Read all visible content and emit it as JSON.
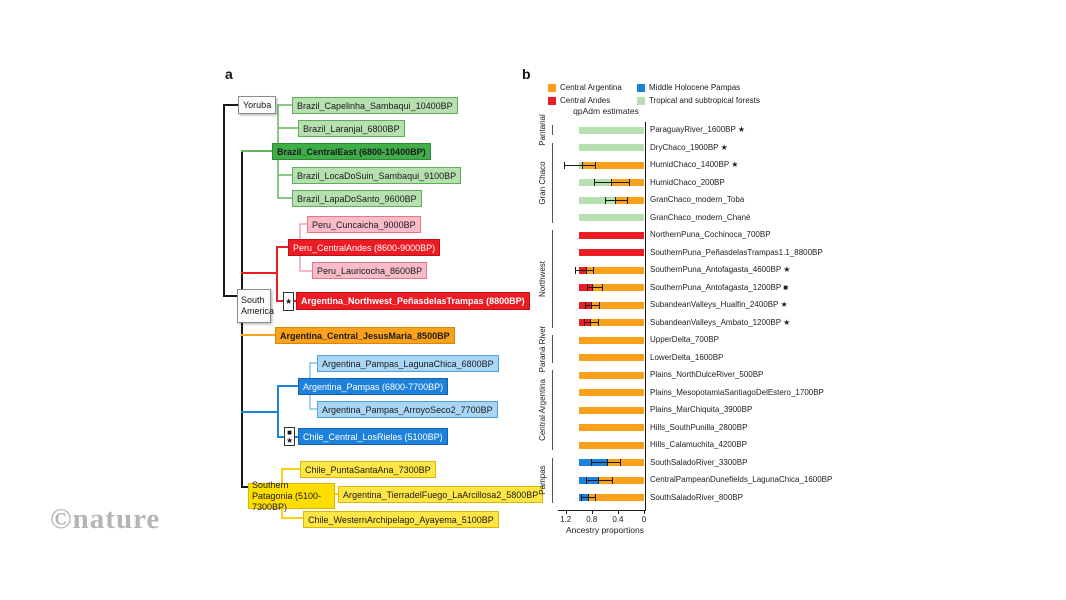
{
  "tree": {
    "panel_label": "a",
    "yoruba": "Yoruba",
    "south_america": "South America",
    "capelinha": "Brazil_Capelinha_Sambaqui_10400BP",
    "laranjal": "Brazil_Laranjal_6800BP",
    "central_east": "Brazil_CentralEast (6800-10400BP)",
    "loca_do_suin": "Brazil_LocaDoSuin_Sambaqui_9100BP",
    "lapa_do_santo": "Brazil_LapaDoSanto_9600BP",
    "cuncaicha": "Peru_Cuncaicha_9000BP",
    "central_andes": "Peru_CentralAndes (8600-9000BP)",
    "lauricocha": "Peru_Lauricocha_8600BP",
    "penas_marker": "★",
    "penas": "Argentina_Northwest_PeñasdelasTrampas (8800BP)",
    "jesus_maria": "Argentina_Central_JesusMaria_8500BP",
    "laguna_chica": "Argentina_Pampas_LagunaChica_6800BP",
    "pampas": "Argentina_Pampas (6800-7700BP)",
    "arroyo_seco": "Argentina_Pampas_ArroyoSeco2_7700BP",
    "los_rieles_marker_square": "■",
    "los_rieles_marker_star": "★",
    "los_rieles": "Chile_Central_LosRieles (5100BP)",
    "punta_santa_ana": "Chile_PuntaSantaAna_7300BP",
    "southern_patagonia": "Southern Patagonia (5100-7300BP)",
    "tierra_del_fuego": "Argentina_TierradelFuego_LaArcillosa2_5800BP",
    "ayayema": "Chile_WesternArchipelago_Ayayema_5100BP"
  },
  "watermark": "©nature",
  "chart_data": {
    "type": "bar",
    "orientation": "horizontal-stacked",
    "panel_label": "b",
    "title": "qpAdm estimates",
    "xlabel": "Ancestry proportions",
    "x_ticks": [
      1.2,
      0.8,
      0.4,
      0
    ],
    "x_axis_reversed": true,
    "legend": [
      {
        "name": "Central Argentina",
        "color": "#f9a11b"
      },
      {
        "name": "Central Andes",
        "color": "#ec1c24"
      },
      {
        "name": "Middle Holocene Pampas",
        "color": "#1e82dc"
      },
      {
        "name": "Tropical and subtropical forests",
        "color": "#b7e0b0"
      }
    ],
    "groups": [
      {
        "label": "Pantanal",
        "rows": [
          {
            "label": "ParaguayRiver_1600BP ★",
            "segments": [
              {
                "ancestry": "Tropical and subtropical forests",
                "color": "#b7e0b0",
                "value": 1.0
              }
            ],
            "error": null
          }
        ]
      },
      {
        "label": "Gran Chaco",
        "rows": [
          {
            "label": "DryChaco_1900BP ★",
            "segments": [
              {
                "ancestry": "Tropical and subtropical forests",
                "color": "#b7e0b0",
                "value": 1.0
              }
            ],
            "error": null
          },
          {
            "label": "HumidChaco_1400BP ★",
            "segments": [
              {
                "ancestry": "Tropical and subtropical forests",
                "color": "#b7e0b0",
                "value": 0.05
              },
              {
                "ancestry": "Central Argentina",
                "color": "#f9a11b",
                "value": 0.95
              }
            ],
            "error": [
              0.75,
              1.23
            ]
          },
          {
            "label": "HumidChaco_200BP",
            "segments": [
              {
                "ancestry": "Tropical and subtropical forests",
                "color": "#b7e0b0",
                "value": 0.5
              },
              {
                "ancestry": "Central Argentina",
                "color": "#f9a11b",
                "value": 0.5
              }
            ],
            "error": [
              0.23,
              0.77
            ]
          },
          {
            "label": "GranChaco_modern_Toba",
            "segments": [
              {
                "ancestry": "Tropical and subtropical forests",
                "color": "#b7e0b0",
                "value": 0.56
              },
              {
                "ancestry": "Central Argentina",
                "color": "#f9a11b",
                "value": 0.44
              }
            ],
            "error": [
              0.26,
              0.6
            ]
          },
          {
            "label": "GranChaco_modern_Chané",
            "segments": [
              {
                "ancestry": "Tropical and subtropical forests",
                "color": "#b7e0b0",
                "value": 1.0
              }
            ],
            "error": null
          }
        ]
      },
      {
        "label": "Northwest",
        "rows": [
          {
            "label": "NorthernPuna_Cochinoca_700BP",
            "segments": [
              {
                "ancestry": "Central Andes",
                "color": "#ec1c24",
                "value": 1.0
              }
            ],
            "error": null
          },
          {
            "label": "SouthernPuna_PeñasdelasTrampas1.1_8800BP",
            "segments": [
              {
                "ancestry": "Central Andes",
                "color": "#ec1c24",
                "value": 1.0
              }
            ],
            "error": null
          },
          {
            "label": "SouthernPuna_Antofagasta_4600BP ★",
            "segments": [
              {
                "ancestry": "Central Andes",
                "color": "#ec1c24",
                "value": 0.11
              },
              {
                "ancestry": "Central Argentina",
                "color": "#f9a11b",
                "value": 0.89
              }
            ],
            "error": [
              0.78,
              1.06
            ]
          },
          {
            "label": "SouthernPuna_Antofagasta_1200BP ■",
            "segments": [
              {
                "ancestry": "Central Andes",
                "color": "#ec1c24",
                "value": 0.21
              },
              {
                "ancestry": "Central Argentina",
                "color": "#f9a11b",
                "value": 0.79
              }
            ],
            "error": [
              0.65,
              0.87
            ]
          },
          {
            "label": "SubandeanValleys_Hualfin_2400BP ★",
            "segments": [
              {
                "ancestry": "Central Andes",
                "color": "#ec1c24",
                "value": 0.19
              },
              {
                "ancestry": "Central Argentina",
                "color": "#f9a11b",
                "value": 0.81
              }
            ],
            "error": [
              0.69,
              0.91
            ]
          },
          {
            "label": "SubandeanValleys_Ambato_1200BP ★",
            "segments": [
              {
                "ancestry": "Central Andes",
                "color": "#ec1c24",
                "value": 0.17
              },
              {
                "ancestry": "Central Argentina",
                "color": "#f9a11b",
                "value": 0.83
              }
            ],
            "error": [
              0.7,
              0.92
            ]
          }
        ]
      },
      {
        "label": "Paraná River",
        "rows": [
          {
            "label": "UpperDelta_700BP",
            "segments": [
              {
                "ancestry": "Central Argentina",
                "color": "#f9a11b",
                "value": 1.0
              }
            ],
            "error": null
          },
          {
            "label": "LowerDelta_1600BP",
            "segments": [
              {
                "ancestry": "Central Argentina",
                "color": "#f9a11b",
                "value": 1.0
              }
            ],
            "error": null
          }
        ]
      },
      {
        "label": "Central Argentina",
        "rows": [
          {
            "label": "Plains_NorthDulceRiver_500BP",
            "segments": [
              {
                "ancestry": "Central Argentina",
                "color": "#f9a11b",
                "value": 1.0
              }
            ],
            "error": null
          },
          {
            "label": "Plains_MesopotamiaSantiagoDelEstero_1700BP",
            "segments": [
              {
                "ancestry": "Central Argentina",
                "color": "#f9a11b",
                "value": 1.0
              }
            ],
            "error": null
          },
          {
            "label": "Plains_MarChiquita_3900BP",
            "segments": [
              {
                "ancestry": "Central Argentina",
                "color": "#f9a11b",
                "value": 1.0
              }
            ],
            "error": null
          },
          {
            "label": "Hills_SouthPunilla_2800BP",
            "segments": [
              {
                "ancestry": "Central Argentina",
                "color": "#f9a11b",
                "value": 1.0
              }
            ],
            "error": null
          },
          {
            "label": "Hills_Calamuchita_4200BP",
            "segments": [
              {
                "ancestry": "Central Argentina",
                "color": "#f9a11b",
                "value": 1.0
              }
            ],
            "error": null
          }
        ]
      },
      {
        "label": "Pampas",
        "rows": [
          {
            "label": "SouthSaladoRiver_3300BP",
            "segments": [
              {
                "ancestry": "Middle Holocene Pampas",
                "color": "#1e82dc",
                "value": 0.43
              },
              {
                "ancestry": "Central Argentina",
                "color": "#f9a11b",
                "value": 0.57
              }
            ],
            "error": [
              0.37,
              0.81
            ]
          },
          {
            "label": "CentralPampeanDunefields_LagunaChica_1600BP",
            "segments": [
              {
                "ancestry": "Middle Holocene Pampas",
                "color": "#1e82dc",
                "value": 0.3
              },
              {
                "ancestry": "Central Argentina",
                "color": "#f9a11b",
                "value": 0.7
              }
            ],
            "error": [
              0.49,
              0.89
            ]
          },
          {
            "label": "SouthSaladoRiver_800BP",
            "segments": [
              {
                "ancestry": "Middle Holocene Pampas",
                "color": "#1e82dc",
                "value": 0.15
              },
              {
                "ancestry": "Central Argentina",
                "color": "#f9a11b",
                "value": 0.85
              }
            ],
            "error": [
              0.75,
              0.97
            ]
          }
        ]
      }
    ]
  }
}
